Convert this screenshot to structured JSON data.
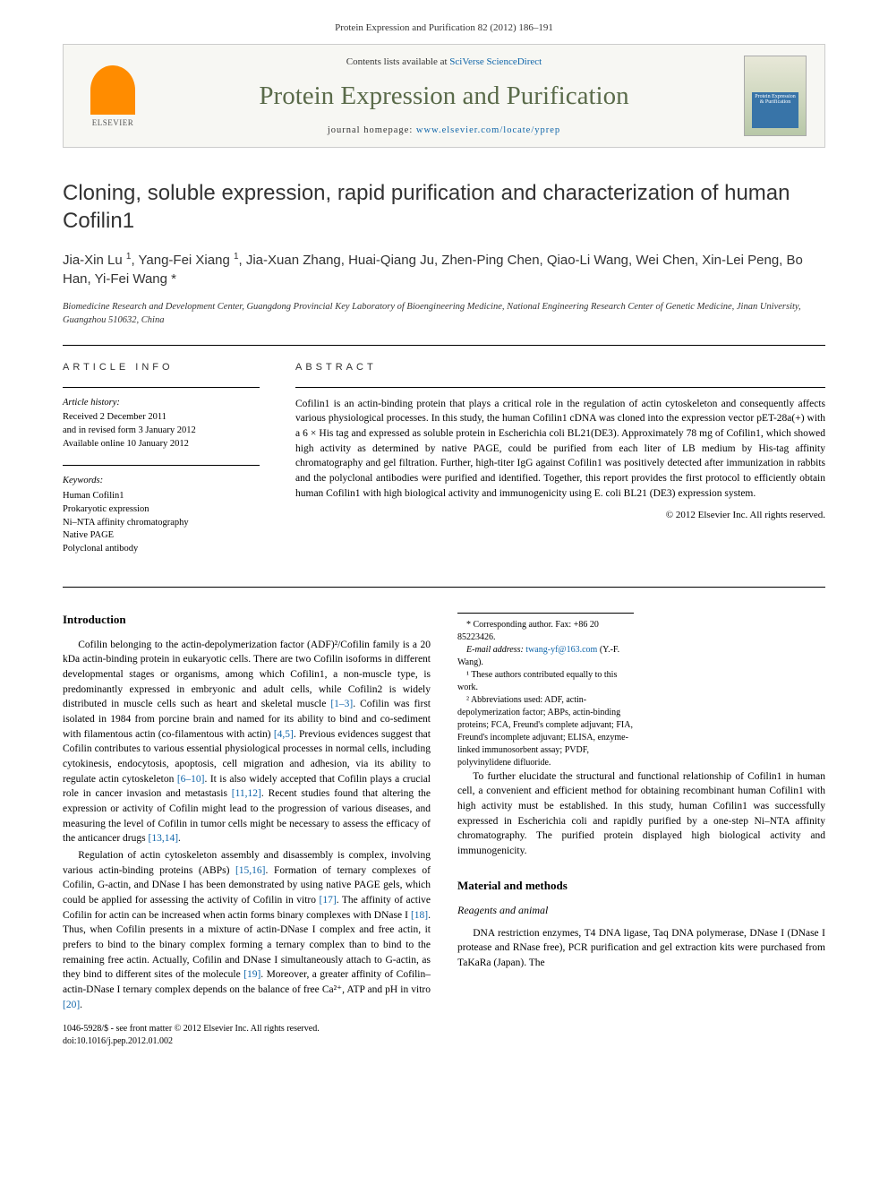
{
  "citation": "Protein Expression and Purification 82 (2012) 186–191",
  "header": {
    "contents_prefix": "Contents lists available at ",
    "contents_link": "SciVerse ScienceDirect",
    "journal_title": "Protein Expression and Purification",
    "homepage_prefix": "journal homepage: ",
    "homepage_link": "www.elsevier.com/locate/yprep",
    "publisher": "ELSEVIER",
    "cover_text": "Protein Expression & Purification"
  },
  "article": {
    "title": "Cloning, soluble expression, rapid purification and characterization of human Cofilin1",
    "authors_html": "Jia-Xin Lu <sup>1</sup>, Yang-Fei Xiang <sup>1</sup>, Jia-Xuan Zhang, Huai-Qiang Ju, Zhen-Ping Chen, Qiao-Li Wang, Wei Chen, Xin-Lei Peng, Bo Han, Yi-Fei Wang <span class='star'>*</span>",
    "affiliation": "Biomedicine Research and Development Center, Guangdong Provincial Key Laboratory of Bioengineering Medicine, National Engineering Research Center of Genetic Medicine, Jinan University, Guangzhou 510632, China"
  },
  "info": {
    "label": "ARTICLE INFO",
    "history_heading": "Article history:",
    "received": "Received 2 December 2011",
    "revised": "and in revised form 3 January 2012",
    "online": "Available online 10 January 2012",
    "keywords_heading": "Keywords:",
    "keywords": [
      "Human Cofilin1",
      "Prokaryotic expression",
      "Ni–NTA affinity chromatography",
      "Native PAGE",
      "Polyclonal antibody"
    ]
  },
  "abstract": {
    "label": "ABSTRACT",
    "text": "Cofilin1 is an actin-binding protein that plays a critical role in the regulation of actin cytoskeleton and consequently affects various physiological processes. In this study, the human Cofilin1 cDNA was cloned into the expression vector pET-28a(+) with a 6 × His tag and expressed as soluble protein in Escherichia coli BL21(DE3). Approximately 78 mg of Cofilin1, which showed high activity as determined by native PAGE, could be purified from each liter of LB medium by His-tag affinity chromatography and gel filtration. Further, high-titer IgG against Cofilin1 was positively detected after immunization in rabbits and the polyclonal antibodies were purified and identified. Together, this report provides the first protocol to efficiently obtain human Cofilin1 with high biological activity and immunogenicity using E. coli BL21 (DE3) expression system.",
    "copyright": "© 2012 Elsevier Inc. All rights reserved."
  },
  "body": {
    "intro_heading": "Introduction",
    "intro_p1": "Cofilin belonging to the actin-depolymerization factor (ADF)²/Cofilin family is a 20 kDa actin-binding protein in eukaryotic cells. There are two Cofilin isoforms in different developmental stages or organisms, among which Cofilin1, a non-muscle type, is predominantly expressed in embryonic and adult cells, while Cofilin2 is widely distributed in muscle cells such as heart and skeletal muscle [1–3]. Cofilin was first isolated in 1984 from porcine brain and named for its ability to bind and co-sediment with filamentous actin (co-filamentous with actin) [4,5]. Previous evidences suggest that Cofilin contributes to various essential physiological processes in normal cells, including cytokinesis, endocytosis, apoptosis, cell migration and adhesion, via its ability to regulate actin cytoskeleton [6–10]. It is also widely accepted that Cofilin plays a crucial role in cancer invasion and metastasis [11,12]. Recent studies found that altering the expression or activity of Cofilin might lead to the progression of various diseases, and measuring the level of Cofilin in tumor cells might be necessary to assess the efficacy of the anticancer drugs [13,14].",
    "intro_p2": "Regulation of actin cytoskeleton assembly and disassembly is complex, involving various actin-binding proteins (ABPs) [15,16]. Formation of ternary complexes of Cofilin, G-actin, and DNase I has been demonstrated by using native PAGE gels, which could be applied for assessing the activity of Cofilin in vitro [17]. The affinity of active Cofilin for actin can be increased when actin forms binary complexes with DNase I [18]. Thus, when Cofilin presents in a mixture of actin-DNase I complex and free actin, it prefers to bind to the binary complex forming a ternary complex than to bind to the remaining free actin. Actually, Cofilin and DNase I simultaneously attach to G-actin, as they bind to different sites of the molecule [19]. Moreover, a greater affinity of Cofilin–actin-DNase I ternary complex depends on the balance of free Ca²⁺, ATP and pH in vitro [20].",
    "intro_p3": "To further elucidate the structural and functional relationship of Cofilin1 in human cell, a convenient and efficient method for obtaining recombinant human Cofilin1 with high activity must be established. In this study, human Cofilin1 was successfully expressed in Escherichia coli and rapidly purified by a one-step Ni–NTA affinity chromatography. The purified protein displayed high biological activity and immunogenicity.",
    "methods_heading": "Material and methods",
    "methods_sub": "Reagents and animal",
    "methods_p1": "DNA restriction enzymes, T4 DNA ligase, Taq DNA polymerase, DNase I (DNase I protease and RNase free), PCR purification and gel extraction kits were purchased from TaKaRa (Japan). The"
  },
  "footnotes": {
    "corr": "* Corresponding author. Fax: +86 20 85223426.",
    "email_label": "E-mail address: ",
    "email": "twang-yf@163.com",
    "email_suffix": " (Y.-F. Wang).",
    "fn1": "¹ These authors contributed equally to this work.",
    "fn2": "² Abbreviations used: ADF, actin-depolymerization factor; ABPs, actin-binding proteins; FCA, Freund's complete adjuvant; FIA, Freund's incomplete adjuvant; ELISA, enzyme-linked immunosorbent assay; PVDF, polyvinylidene difluoride."
  },
  "footer": {
    "issn": "1046-5928/$ - see front matter © 2012 Elsevier Inc. All rights reserved.",
    "doi": "doi:10.1016/j.pep.2012.01.002"
  },
  "refs": {
    "r1": "[1–3]",
    "r4": "[4,5]",
    "r6": "[6–10]",
    "r11": "[11,12]",
    "r13": "[13,14]",
    "r15": "[15,16]",
    "r17": "[17]",
    "r18": "[18]",
    "r19": "[19]",
    "r20": "[20]"
  },
  "colors": {
    "link": "#1166aa",
    "journal_title": "#5a6b4a",
    "elsevier_orange": "#ff8c00",
    "text": "#000000",
    "border": "#cccccc"
  }
}
